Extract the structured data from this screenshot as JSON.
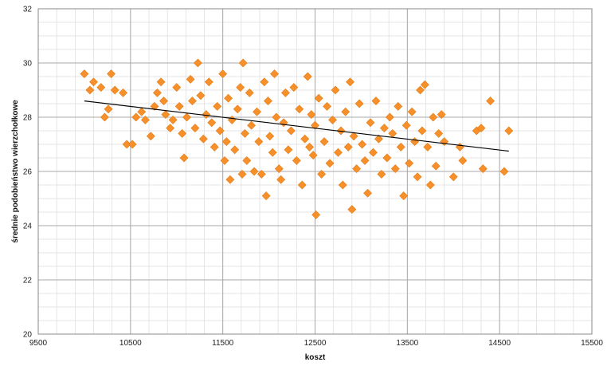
{
  "chart_data": {
    "type": "scatter",
    "xlabel": "koszt",
    "ylabel": "średnie podobieństwo wierzchołkowe",
    "xlim": [
      9500,
      15500
    ],
    "ylim": [
      20,
      32
    ],
    "x_ticks": [
      9500,
      10500,
      11500,
      12500,
      13500,
      14500,
      15500
    ],
    "y_ticks": [
      20,
      22,
      24,
      26,
      28,
      30,
      32
    ],
    "minor_x_step": 200,
    "minor_y_step": 0.5,
    "grid": true,
    "marker_color": "#f7902a",
    "trendline": {
      "x": [
        10000,
        14600
      ],
      "y": [
        28.6,
        26.75
      ],
      "color": "#000000"
    },
    "points": [
      [
        10000,
        29.6
      ],
      [
        10060,
        29.0
      ],
      [
        10100,
        29.3
      ],
      [
        10180,
        29.1
      ],
      [
        10220,
        28.0
      ],
      [
        10260,
        28.3
      ],
      [
        10290,
        29.6
      ],
      [
        10330,
        29.0
      ],
      [
        10420,
        28.9
      ],
      [
        10460,
        27.0
      ],
      [
        10520,
        27.0
      ],
      [
        10560,
        28.0
      ],
      [
        10620,
        28.2
      ],
      [
        10660,
        27.9
      ],
      [
        10720,
        27.3
      ],
      [
        10760,
        28.4
      ],
      [
        10790,
        28.9
      ],
      [
        10830,
        29.3
      ],
      [
        10860,
        28.6
      ],
      [
        10880,
        28.1
      ],
      [
        10930,
        27.6
      ],
      [
        10960,
        27.9
      ],
      [
        11000,
        29.1
      ],
      [
        11030,
        28.4
      ],
      [
        11060,
        27.4
      ],
      [
        11080,
        26.5
      ],
      [
        11110,
        28.0
      ],
      [
        11150,
        29.4
      ],
      [
        11170,
        28.6
      ],
      [
        11200,
        27.6
      ],
      [
        11230,
        30.0
      ],
      [
        11260,
        28.8
      ],
      [
        11290,
        27.2
      ],
      [
        11320,
        28.1
      ],
      [
        11350,
        29.3
      ],
      [
        11380,
        27.8
      ],
      [
        11410,
        26.9
      ],
      [
        11440,
        28.4
      ],
      [
        11470,
        27.5
      ],
      [
        11500,
        29.6
      ],
      [
        11520,
        26.4
      ],
      [
        11540,
        27.1
      ],
      [
        11560,
        28.7
      ],
      [
        11580,
        25.7
      ],
      [
        11600,
        27.9
      ],
      [
        11630,
        26.8
      ],
      [
        11660,
        28.3
      ],
      [
        11690,
        29.1
      ],
      [
        11710,
        25.9
      ],
      [
        11720,
        30.0
      ],
      [
        11740,
        27.4
      ],
      [
        11760,
        26.4
      ],
      [
        11790,
        28.9
      ],
      [
        11810,
        27.7
      ],
      [
        11840,
        26.0
      ],
      [
        11870,
        28.2
      ],
      [
        11890,
        27.1
      ],
      [
        11920,
        25.9
      ],
      [
        11950,
        29.3
      ],
      [
        11970,
        25.1
      ],
      [
        11990,
        28.6
      ],
      [
        12010,
        27.3
      ],
      [
        12040,
        26.7
      ],
      [
        12060,
        29.6
      ],
      [
        12080,
        28.0
      ],
      [
        12110,
        26.1
      ],
      [
        12130,
        25.7
      ],
      [
        12160,
        27.8
      ],
      [
        12180,
        28.9
      ],
      [
        12210,
        26.8
      ],
      [
        12240,
        27.5
      ],
      [
        12270,
        29.1
      ],
      [
        12300,
        26.4
      ],
      [
        12330,
        28.3
      ],
      [
        12360,
        25.5
      ],
      [
        12390,
        27.2
      ],
      [
        12420,
        29.5
      ],
      [
        12440,
        26.9
      ],
      [
        12460,
        28.1
      ],
      [
        12480,
        26.6
      ],
      [
        12500,
        27.7
      ],
      [
        12510,
        24.4
      ],
      [
        12540,
        28.7
      ],
      [
        12570,
        25.9
      ],
      [
        12600,
        27.1
      ],
      [
        12630,
        28.4
      ],
      [
        12660,
        26.3
      ],
      [
        12690,
        27.9
      ],
      [
        12720,
        29.0
      ],
      [
        12750,
        26.7
      ],
      [
        12780,
        27.5
      ],
      [
        12800,
        25.5
      ],
      [
        12830,
        28.2
      ],
      [
        12860,
        26.9
      ],
      [
        12880,
        29.3
      ],
      [
        12900,
        24.6
      ],
      [
        12920,
        27.3
      ],
      [
        12950,
        26.1
      ],
      [
        12980,
        28.5
      ],
      [
        13010,
        27.0
      ],
      [
        13040,
        26.4
      ],
      [
        13070,
        25.2
      ],
      [
        13100,
        27.8
      ],
      [
        13130,
        26.7
      ],
      [
        13160,
        28.6
      ],
      [
        13190,
        27.2
      ],
      [
        13220,
        25.9
      ],
      [
        13250,
        27.6
      ],
      [
        13280,
        26.5
      ],
      [
        13310,
        28.0
      ],
      [
        13340,
        27.4
      ],
      [
        13370,
        26.1
      ],
      [
        13400,
        28.4
      ],
      [
        13430,
        26.9
      ],
      [
        13460,
        25.1
      ],
      [
        13490,
        27.7
      ],
      [
        13520,
        26.3
      ],
      [
        13550,
        28.2
      ],
      [
        13580,
        27.1
      ],
      [
        13610,
        25.8
      ],
      [
        13640,
        29.0
      ],
      [
        13660,
        27.5
      ],
      [
        13690,
        29.2
      ],
      [
        13720,
        26.9
      ],
      [
        13750,
        25.5
      ],
      [
        13780,
        28.0
      ],
      [
        13810,
        26.2
      ],
      [
        13840,
        27.4
      ],
      [
        13870,
        28.1
      ],
      [
        13900,
        27.1
      ],
      [
        14000,
        25.8
      ],
      [
        14070,
        26.9
      ],
      [
        14100,
        26.4
      ],
      [
        14250,
        27.5
      ],
      [
        14300,
        27.6
      ],
      [
        14320,
        26.1
      ],
      [
        14400,
        28.6
      ],
      [
        14550,
        26.0
      ],
      [
        14600,
        27.5
      ]
    ]
  }
}
